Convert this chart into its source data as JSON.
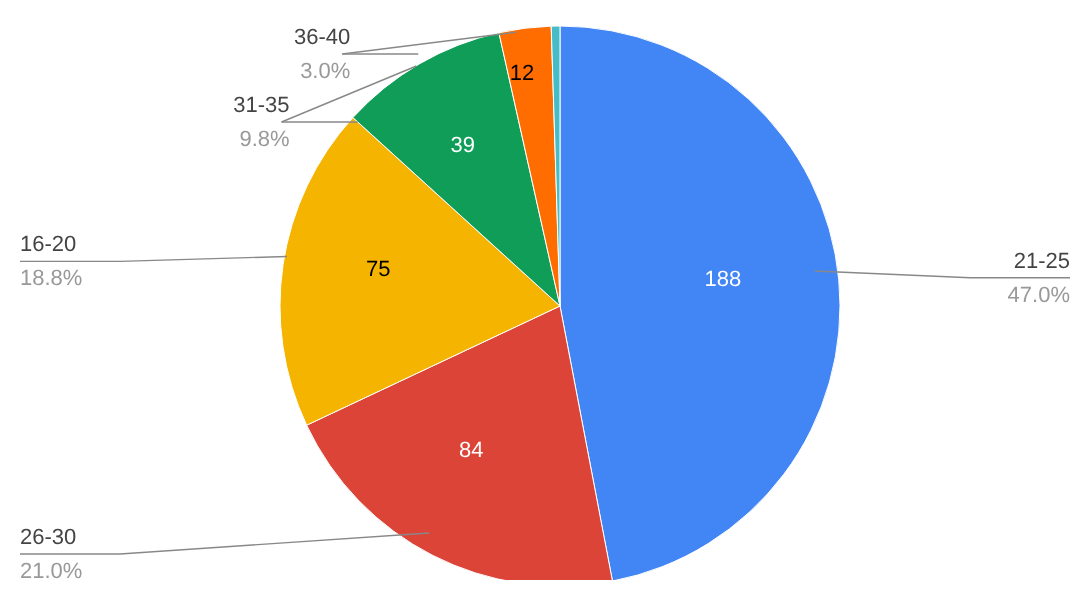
{
  "chart_data": {
    "type": "pie",
    "categories": [
      "21-25",
      "26-30",
      "16-20",
      "31-35",
      "36-40",
      null
    ],
    "values": [
      188,
      84,
      75,
      39,
      12,
      2
    ],
    "colors": [
      "#4285f4",
      "#db4437",
      "#f4b400",
      "#0f9d58",
      "#ff6d01",
      "#46bdc6"
    ],
    "value_labels": [
      "188",
      "84",
      "75",
      "39",
      "12",
      null
    ],
    "annotations": [
      "47.0%",
      "21.0%",
      "18.8%",
      "9.8%",
      "3.0%"
    ],
    "legend": false
  }
}
